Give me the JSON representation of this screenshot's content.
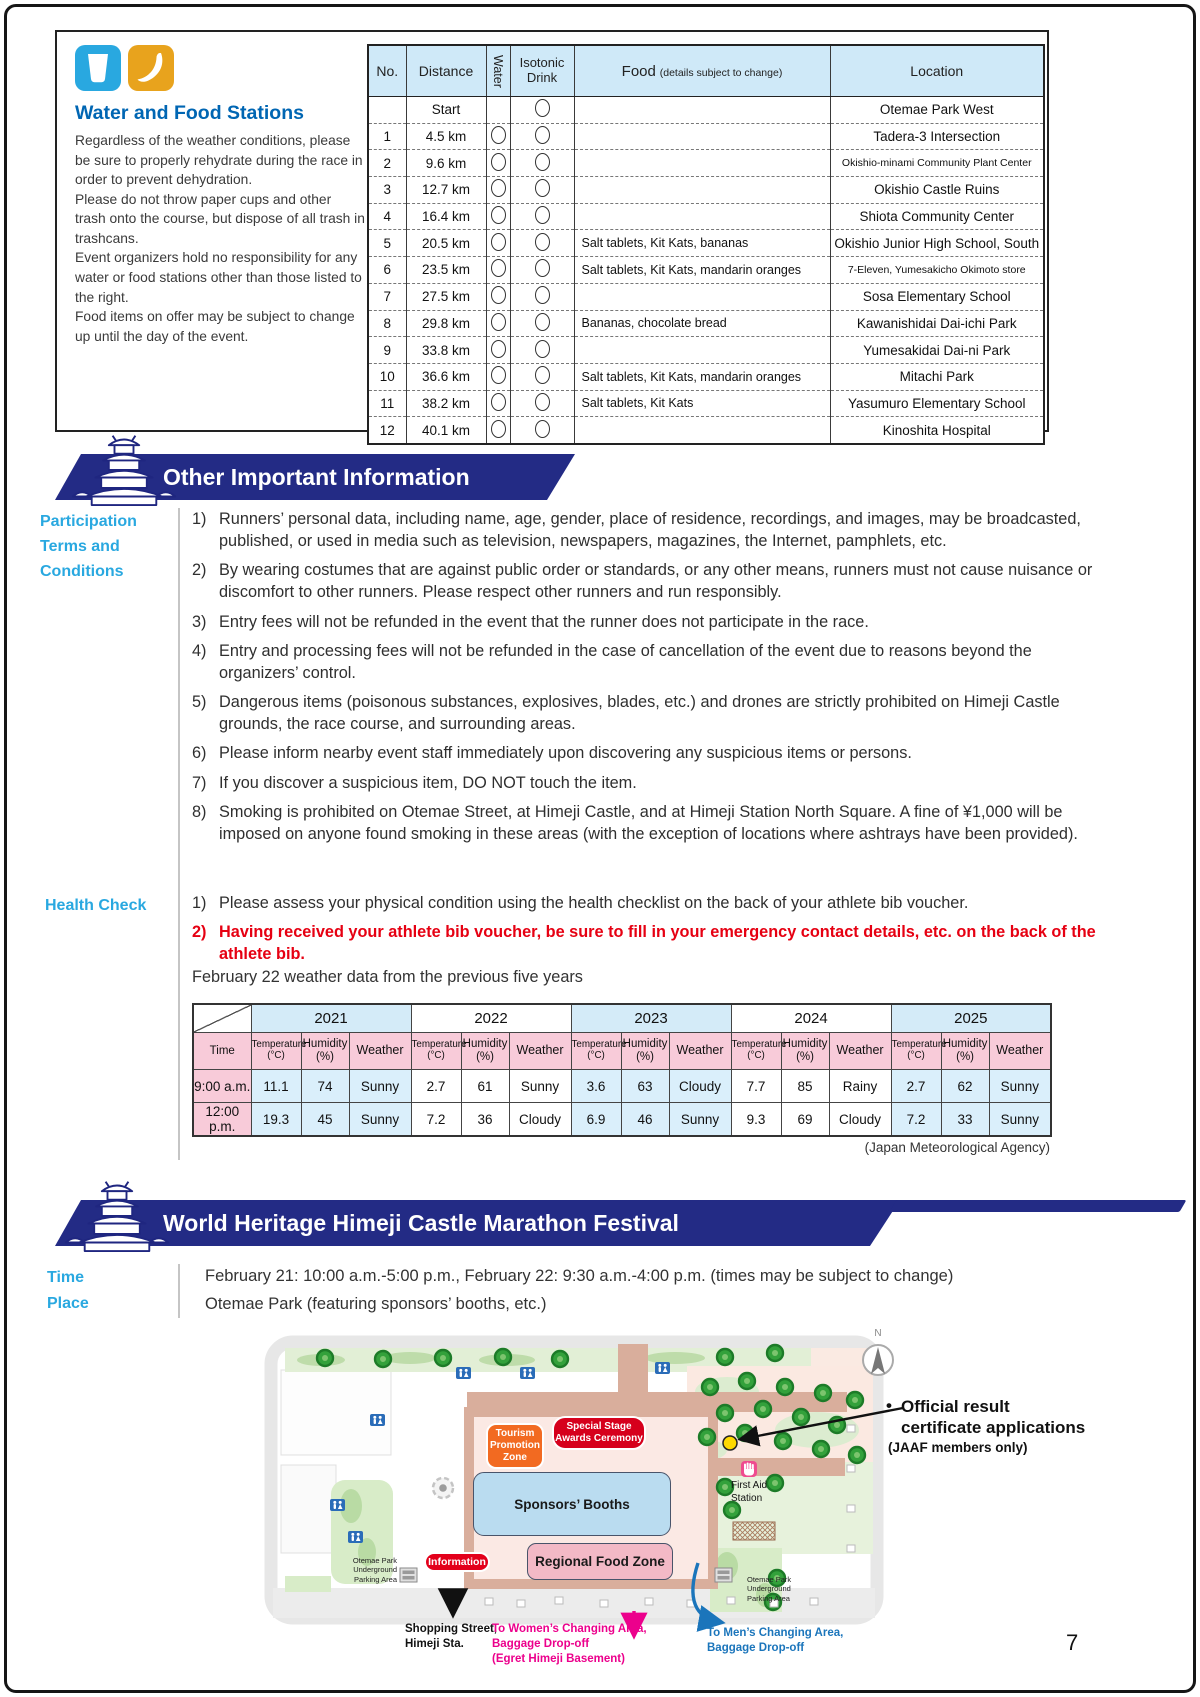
{
  "page_number": "7",
  "water_food": {
    "title": "Water and Food Stations",
    "paragraphs": [
      "Regardless of the weather conditions, please be sure to properly rehydrate during the race in order to prevent dehydration.",
      "Please do not throw paper cups and other trash onto the course, but dispose of all trash in trashcans.",
      "Event organizers hold no responsibility for any water or food stations other than those listed to the right.",
      "Food items on offer may be subject to change up until the day of the event."
    ],
    "table": {
      "col_no": "No.",
      "col_distance": "Distance",
      "col_water": "Water",
      "col_isotonic": "Isotonic\nDrink",
      "col_food": "Food",
      "col_food_note": "(details subject to change)",
      "col_location": "Location",
      "rows": [
        {
          "no": "",
          "distance": "Start",
          "water": false,
          "isotonic": true,
          "food": "",
          "location": "Otemae Park West",
          "small": false
        },
        {
          "no": "1",
          "distance": "4.5 km",
          "water": true,
          "isotonic": true,
          "food": "",
          "location": "Tadera-3 Intersection",
          "small": false
        },
        {
          "no": "2",
          "distance": "9.6 km",
          "water": true,
          "isotonic": true,
          "food": "",
          "location": "Okishio-minami Community Plant Center",
          "small": true
        },
        {
          "no": "3",
          "distance": "12.7 km",
          "water": true,
          "isotonic": true,
          "food": "",
          "location": "Okishio Castle Ruins",
          "small": false
        },
        {
          "no": "4",
          "distance": "16.4 km",
          "water": true,
          "isotonic": true,
          "food": "",
          "location": "Shiota Community Center",
          "small": false
        },
        {
          "no": "5",
          "distance": "20.5 km",
          "water": true,
          "isotonic": true,
          "food": "Salt tablets, Kit Kats, bananas",
          "location": "Okishio Junior High School, South",
          "small": false
        },
        {
          "no": "6",
          "distance": "23.5 km",
          "water": true,
          "isotonic": true,
          "food": "Salt tablets, Kit Kats, mandarin oranges",
          "location": "7-Eleven, Yumesakicho Okimoto store",
          "small": true
        },
        {
          "no": "7",
          "distance": "27.5 km",
          "water": true,
          "isotonic": true,
          "food": "",
          "location": "Sosa Elementary School",
          "small": false
        },
        {
          "no": "8",
          "distance": "29.8 km",
          "water": true,
          "isotonic": true,
          "food": "Bananas, chocolate bread",
          "location": "Kawanishidai Dai-ichi Park",
          "small": false
        },
        {
          "no": "9",
          "distance": "33.8 km",
          "water": true,
          "isotonic": true,
          "food": "",
          "location": "Yumesakidai Dai-ni Park",
          "small": false
        },
        {
          "no": "10",
          "distance": "36.6 km",
          "water": true,
          "isotonic": true,
          "food": "Salt tablets, Kit Kats, mandarin oranges",
          "location": "Mitachi Park",
          "small": false
        },
        {
          "no": "11",
          "distance": "38.2 km",
          "water": true,
          "isotonic": true,
          "food": "Salt tablets, Kit Kats",
          "location": "Yasumuro Elementary School",
          "small": false
        },
        {
          "no": "12",
          "distance": "40.1 km",
          "water": true,
          "isotonic": true,
          "food": "",
          "location": "Kinoshita Hospital",
          "small": false
        }
      ]
    }
  },
  "other_info": {
    "banner": "Other Important Information",
    "participation_label": "Participation\nTerms and\nConditions",
    "participation_items": [
      "Runners’ personal data, including name, age, gender, place of residence, recordings, and images, may be broadcasted, published, or used in media such as television, newspapers, magazines, the Internet, pamphlets, etc.",
      "By wearing costumes that are against public order or standards, or any other means, runners must not cause nuisance or discomfort to other runners. Please respect other runners and run responsibly.",
      "Entry fees will not be refunded in the event that the runner does not participate in the race.",
      "Entry and processing fees will not be refunded in the case of cancellation of the event due to reasons beyond the organizers’ control.",
      "Dangerous items (poisonous substances, explosives, blades, etc.) and drones are strictly prohibited on Himeji Castle grounds, the race course, and surrounding areas.",
      "Please inform nearby event staff immediately upon discovering any suspicious items or persons.",
      "If you discover a suspicious item, DO NOT touch the item.",
      "Smoking is prohibited on Otemae Street, at Himeji Castle, and at Himeji Station North Square. A fine of ¥1,000 will be imposed on anyone found smoking in these areas (with the exception of locations where ashtrays have been provided)."
    ],
    "health_label": "Health Check",
    "health_items": [
      {
        "text": "Please assess your physical condition using the health checklist on the back of your athlete bib voucher.",
        "red": false
      },
      {
        "text": "Having received your athlete bib voucher, be sure to fill in your emergency contact details, etc. on the back of the athlete bib.",
        "red": true
      }
    ],
    "weather_caption": "February 22 weather data from the previous five years",
    "weather_source": "(Japan Meteorological Agency)",
    "weather_table": {
      "time_label": "Time",
      "years": [
        "2021",
        "2022",
        "2023",
        "2024",
        "2025"
      ],
      "sub_headers": [
        "Temperature\n(°C)",
        "Humidity\n(%)",
        "Weather"
      ],
      "rows": [
        {
          "time": "9:00 a.m.",
          "values": [
            [
              "11.1",
              "74",
              "Sunny"
            ],
            [
              "2.7",
              "61",
              "Sunny"
            ],
            [
              "3.6",
              "63",
              "Cloudy"
            ],
            [
              "7.7",
              "85",
              "Rainy"
            ],
            [
              "2.7",
              "62",
              "Sunny"
            ]
          ]
        },
        {
          "time": "12:00 p.m.",
          "values": [
            [
              "19.3",
              "45",
              "Sunny"
            ],
            [
              "7.2",
              "36",
              "Cloudy"
            ],
            [
              "6.9",
              "46",
              "Sunny"
            ],
            [
              "9.3",
              "69",
              "Cloudy"
            ],
            [
              "7.2",
              "33",
              "Sunny"
            ]
          ]
        }
      ]
    }
  },
  "festival": {
    "banner": "World Heritage Himeji Castle Marathon Festival",
    "time_label": "Time",
    "place_label": "Place",
    "time_text": "February 21: 10:00 a.m.-5:00 p.m., February 22: 9:30 a.m.-4:00 p.m. (times may be subject to change)",
    "place_text": "Otemae Park (featuring sponsors’ booths, etc.)",
    "map": {
      "compass": "N",
      "tourism_zone": "Tourism\nPromotion\nZone",
      "special_stage": "Special Stage\nAwards Ceremony",
      "sponsors_booths": "Sponsors’ Booths",
      "regional_food_zone": "Regional Food Zone",
      "information": "Information",
      "first_aid": "First Aid\nStation",
      "parking_left": "Otemae Park\nUnderground\nParking Area",
      "parking_right": "Otemae Park\nUnderground\nParking Area",
      "shopping": "Shopping Street,\nHimeji Sta.",
      "women_changing": "To Women’s Changing Area,\nBaggage Drop-off\n(Egret Himeji Basement)",
      "men_changing": "To Men’s Changing Area,\nBaggage Drop-off",
      "official_result_bullet": "•",
      "official_result_line1": "Official result\ncertificate applications",
      "official_result_line2": "(JAAF members only)"
    }
  }
}
